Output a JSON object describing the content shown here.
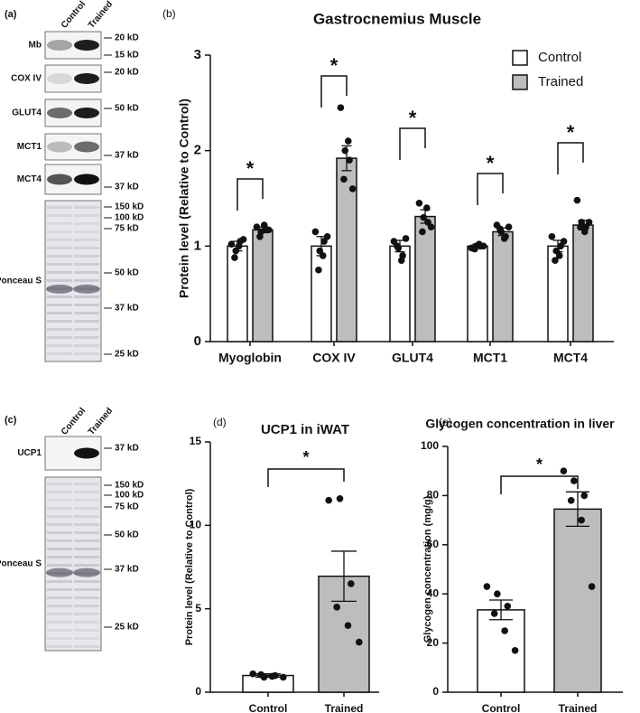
{
  "chart_data": [
    {
      "type": "bar",
      "panel": "(b)",
      "title": "Gastrocnemius Muscle",
      "ylabel": "Protein level (Relative to Control)",
      "categories": [
        "Myoglobin",
        "COX IV",
        "GLUT4",
        "MCT1",
        "MCT4"
      ],
      "series": [
        {
          "name": "Control",
          "color": "#ffffff",
          "values": [
            1,
            1,
            1,
            1,
            1
          ],
          "errors": [
            0.05,
            0.1,
            0.06,
            0.02,
            0.06
          ],
          "points": [
            [
              1.02,
              0.95,
              1.05,
              0.88,
              1.0,
              1.07
            ],
            [
              1.15,
              0.95,
              1.05,
              0.75,
              0.9,
              1.1
            ],
            [
              1.05,
              0.98,
              0.9,
              1.0,
              0.85,
              1.08
            ],
            [
              0.98,
              1.0,
              1.0,
              0.97,
              1.02,
              1.0
            ],
            [
              1.1,
              0.95,
              1.0,
              0.85,
              0.9,
              1.05
            ]
          ]
        },
        {
          "name": "Trained",
          "color": "#bdbdbd",
          "values": [
            1.17,
            1.92,
            1.31,
            1.15,
            1.22
          ],
          "errors": [
            0.03,
            0.13,
            0.07,
            0.04,
            0.05
          ],
          "points": [
            [
              1.2,
              1.15,
              1.18,
              1.1,
              1.22,
              1.17
            ],
            [
              2.45,
              2.0,
              1.9,
              1.7,
              2.1,
              1.6
            ],
            [
              1.45,
              1.3,
              1.25,
              1.15,
              1.4,
              1.2
            ],
            [
              1.22,
              1.15,
              1.1,
              1.18,
              1.08,
              1.2
            ],
            [
              1.48,
              1.25,
              1.2,
              1.2,
              1.15,
              1.25
            ]
          ]
        }
      ],
      "significance": [
        "*",
        "*",
        "*",
        "*",
        "*"
      ],
      "ylim": [
        0,
        3
      ],
      "yticks": [
        0,
        1,
        2,
        3
      ],
      "legend": "top-right"
    },
    {
      "type": "bar",
      "panel": "(d)",
      "title": "UCP1 in iWAT",
      "ylabel": "Protein level (Relative to Control)",
      "categories": [
        "Control",
        "Trained"
      ],
      "values": [
        1,
        6.95
      ],
      "errors": [
        0.1,
        1.5
      ],
      "colors": [
        "#ffffff",
        "#bdbdbd"
      ],
      "points": [
        [
          1.1,
          0.9,
          1.0,
          1.05,
          0.95,
          0.9
        ],
        [
          11.5,
          11.6,
          6.5,
          5.1,
          4.0,
          3.0
        ]
      ],
      "significance": [
        "*"
      ],
      "ylim": [
        0,
        15
      ],
      "yticks": [
        0,
        5,
        10,
        15
      ]
    },
    {
      "type": "bar",
      "panel": "(e)",
      "title": "Glycogen concentration in liver",
      "ylabel": "Glycogen concentration (mg/g)",
      "categories": [
        "Control",
        "Trained"
      ],
      "values": [
        33.5,
        74.5
      ],
      "errors": [
        4,
        7
      ],
      "colors": [
        "#ffffff",
        "#bdbdbd"
      ],
      "points": [
        [
          43,
          40,
          35,
          32,
          25,
          17
        ],
        [
          90,
          86,
          80,
          78,
          70,
          43
        ]
      ],
      "significance": [
        "*"
      ],
      "ylim": [
        0,
        100
      ],
      "yticks": [
        0,
        20,
        40,
        60,
        80,
        100
      ]
    }
  ],
  "blots": [
    {
      "panel": "(a)",
      "lanes": [
        "Control",
        "Trained"
      ],
      "rows": [
        {
          "name": "Mb",
          "markers": [
            "20 kD",
            "15 kD"
          ]
        },
        {
          "name": "COX IV",
          "markers": [
            "20 kD"
          ]
        },
        {
          "name": "GLUT4",
          "markers": [
            "50 kD"
          ]
        },
        {
          "name": "MCT1",
          "markers": [
            "37 kD"
          ]
        },
        {
          "name": "MCT4",
          "markers": [
            "37 kD"
          ]
        },
        {
          "name": "Ponceau S",
          "markers": [
            "150 kD",
            "100 kD",
            "75 kD",
            "50 kD",
            "37 kD",
            "25 kD"
          ]
        }
      ]
    },
    {
      "panel": "(c)",
      "lanes": [
        "Control",
        "Trained"
      ],
      "rows": [
        {
          "name": "UCP1",
          "markers": [
            "37 kD"
          ]
        },
        {
          "name": "Ponceau S",
          "markers": [
            "150 kD",
            "100 kD",
            "75 kD",
            "50 kD",
            "37 kD",
            "25 kD"
          ]
        }
      ]
    }
  ]
}
